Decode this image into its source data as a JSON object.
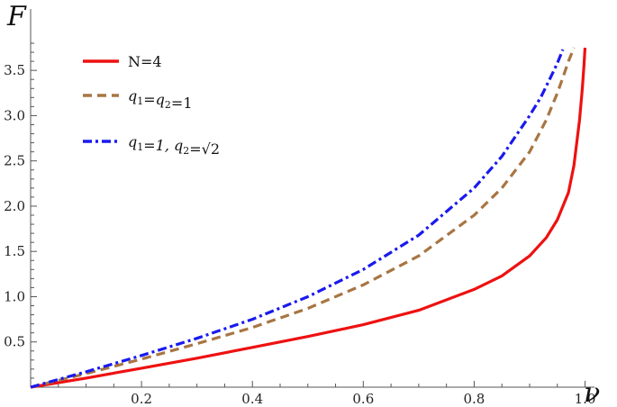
{
  "chart_data": {
    "type": "line",
    "xlabel": "ν",
    "ylabel": "F",
    "xlim": [
      0,
      1.03
    ],
    "ylim": [
      0,
      3.8
    ],
    "xticks": [
      "0.2",
      "0.4",
      "0.6",
      "0.8",
      "1.0"
    ],
    "yticks": [
      "0.5",
      "1.0",
      "1.5",
      "2.0",
      "2.5",
      "3.0",
      "3.5"
    ],
    "legend_position": "top-left",
    "grid": false,
    "series": [
      {
        "name": "N=4",
        "color": "#ee1111",
        "dash": "solid",
        "x": [
          0,
          0.1,
          0.2,
          0.3,
          0.4,
          0.5,
          0.6,
          0.7,
          0.8,
          0.85,
          0.9,
          0.93,
          0.95,
          0.97,
          0.98,
          0.99,
          0.995,
          0.998,
          1.0
        ],
        "y": [
          0,
          0.1,
          0.21,
          0.32,
          0.44,
          0.56,
          0.69,
          0.85,
          1.08,
          1.23,
          1.45,
          1.65,
          1.85,
          2.15,
          2.45,
          2.95,
          3.3,
          3.55,
          3.75
        ]
      },
      {
        "name": "q",
        "name_sub1": "1",
        "name_mid": "=q",
        "name_sub2": "2",
        "name_end": "=1",
        "color": "#a87543",
        "dash": "dashed",
        "x": [
          0,
          0.1,
          0.2,
          0.3,
          0.4,
          0.5,
          0.6,
          0.7,
          0.8,
          0.85,
          0.9,
          0.93,
          0.95,
          0.96,
          0.97,
          0.98
        ],
        "y": [
          0,
          0.15,
          0.31,
          0.48,
          0.66,
          0.87,
          1.13,
          1.45,
          1.9,
          2.2,
          2.6,
          2.95,
          3.25,
          3.42,
          3.6,
          3.75
        ]
      },
      {
        "name": "q",
        "name_sub1": "1",
        "name_mid": "=1, q",
        "name_sub2": "2",
        "name_end": "=√2",
        "color": "#1a1aee",
        "dash": "dashdot",
        "x": [
          0,
          0.1,
          0.2,
          0.3,
          0.4,
          0.5,
          0.6,
          0.7,
          0.8,
          0.85,
          0.9,
          0.92,
          0.94,
          0.95,
          0.96
        ],
        "y": [
          0,
          0.17,
          0.35,
          0.54,
          0.75,
          1.0,
          1.3,
          1.68,
          2.2,
          2.55,
          3.0,
          3.2,
          3.45,
          3.58,
          3.73
        ]
      }
    ]
  }
}
